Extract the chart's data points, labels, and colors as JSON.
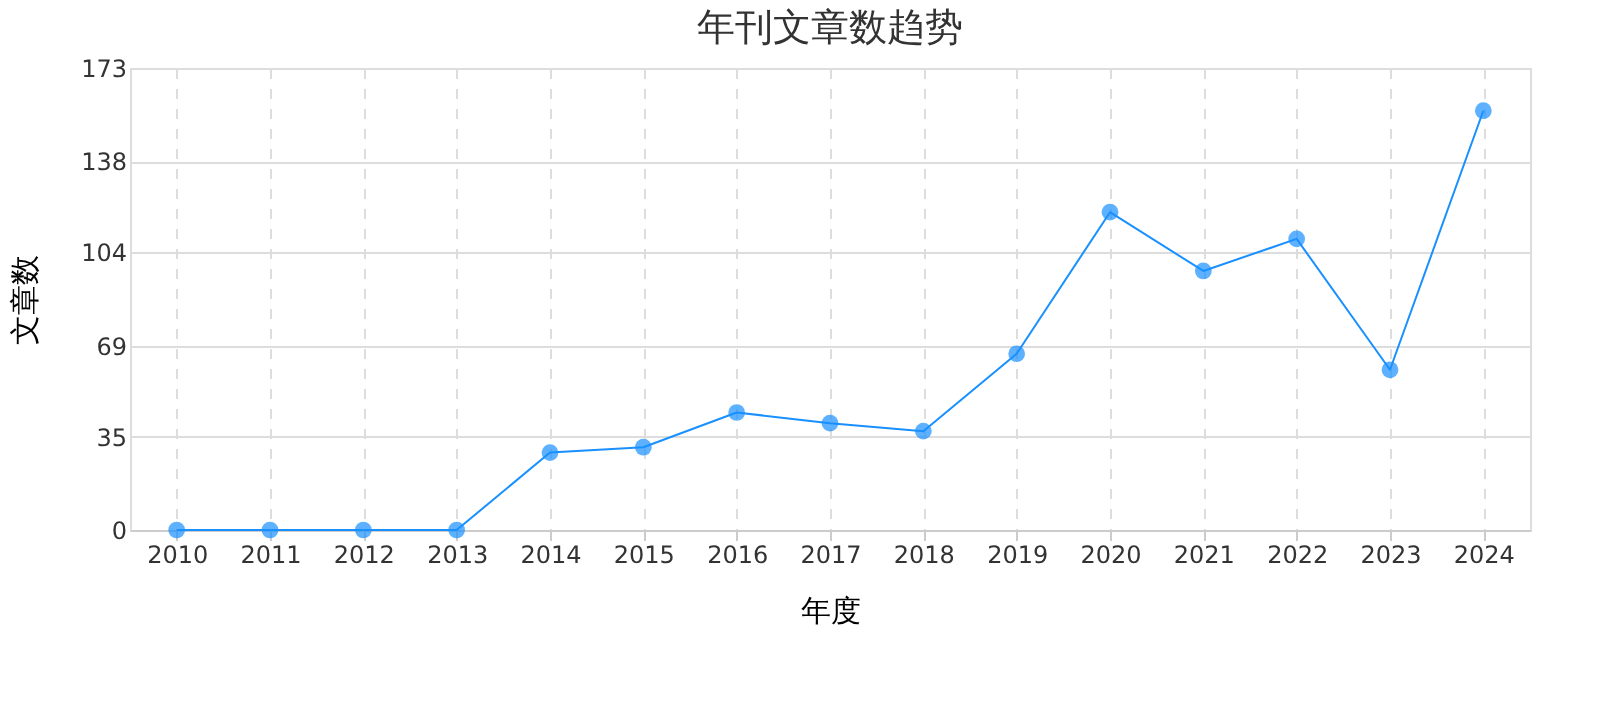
{
  "chart_data": {
    "type": "line",
    "title": "年刊文章数趋势",
    "xlabel": "年度",
    "ylabel": "文章数",
    "categories": [
      "2010",
      "2011",
      "2012",
      "2013",
      "2014",
      "2015",
      "2016",
      "2017",
      "2018",
      "2019",
      "2020",
      "2021",
      "2022",
      "2023",
      "2024"
    ],
    "series": [
      {
        "color": "#1890ff",
        "values": [
          0,
          0,
          0,
          0,
          29,
          31,
          44,
          40,
          37,
          66,
          119,
          97,
          109,
          60,
          157
        ]
      }
    ],
    "ylim": [
      0,
      173
    ],
    "yticks": [
      0,
      35,
      69,
      104,
      138,
      173
    ],
    "grid": true,
    "marker": "circle",
    "line_style": "solid"
  }
}
